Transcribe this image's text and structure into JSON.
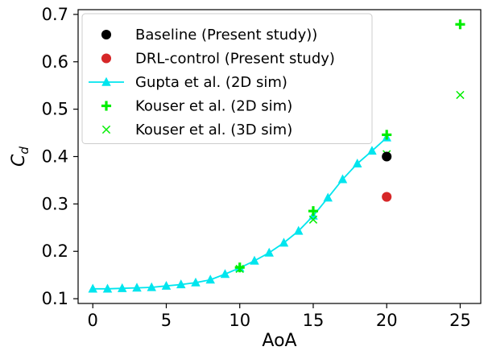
{
  "chart_data": {
    "type": "scatter",
    "title": "",
    "xlabel": "AoA",
    "ylabel_main": "C",
    "ylabel_sub": "d",
    "xlim": [
      -1,
      26.4
    ],
    "ylim": [
      0.09,
      0.71
    ],
    "xticks": [
      0,
      5,
      10,
      15,
      20,
      25
    ],
    "yticks": [
      0.1,
      0.2,
      0.3,
      0.4,
      0.5,
      0.6,
      0.7
    ],
    "xtick_labels": [
      "0",
      "5",
      "10",
      "15",
      "20",
      "25"
    ],
    "ytick_labels": [
      "0.1",
      "0.2",
      "0.3",
      "0.4",
      "0.5",
      "0.6",
      "0.7"
    ],
    "grid": false,
    "legend_position": "top-left",
    "series": [
      {
        "name": "Baseline (Present study))",
        "marker": "circle",
        "color": "#000000",
        "line": false,
        "x": [
          20
        ],
        "y": [
          0.4
        ]
      },
      {
        "name": "DRL-control (Present study)",
        "marker": "circle",
        "color": "#d62728",
        "line": false,
        "x": [
          20
        ],
        "y": [
          0.315
        ]
      },
      {
        "name": "Gupta et al. (2D sim)",
        "marker": "triangle",
        "color": "#00e5ee",
        "line": true,
        "x": [
          0,
          1,
          2,
          3,
          4,
          5,
          6,
          7,
          8,
          9,
          10,
          11,
          12,
          13,
          14,
          15,
          16,
          17,
          18,
          19,
          20
        ],
        "y": [
          0.121,
          0.121,
          0.122,
          0.123,
          0.124,
          0.127,
          0.13,
          0.134,
          0.14,
          0.152,
          0.165,
          0.18,
          0.197,
          0.218,
          0.243,
          0.275,
          0.313,
          0.352,
          0.385,
          0.412,
          0.44
        ]
      },
      {
        "name": "Kouser et al. (2D sim)",
        "marker": "plus",
        "color": "#00ee00",
        "line": false,
        "x": [
          10,
          15,
          20,
          25
        ],
        "y": [
          0.166,
          0.285,
          0.446,
          0.679
        ]
      },
      {
        "name": "Kouser et al. (3D sim)",
        "marker": "x",
        "color": "#00ee00",
        "line": false,
        "x": [
          10,
          15,
          20,
          25
        ],
        "y": [
          0.163,
          0.267,
          0.405,
          0.53
        ]
      }
    ]
  }
}
